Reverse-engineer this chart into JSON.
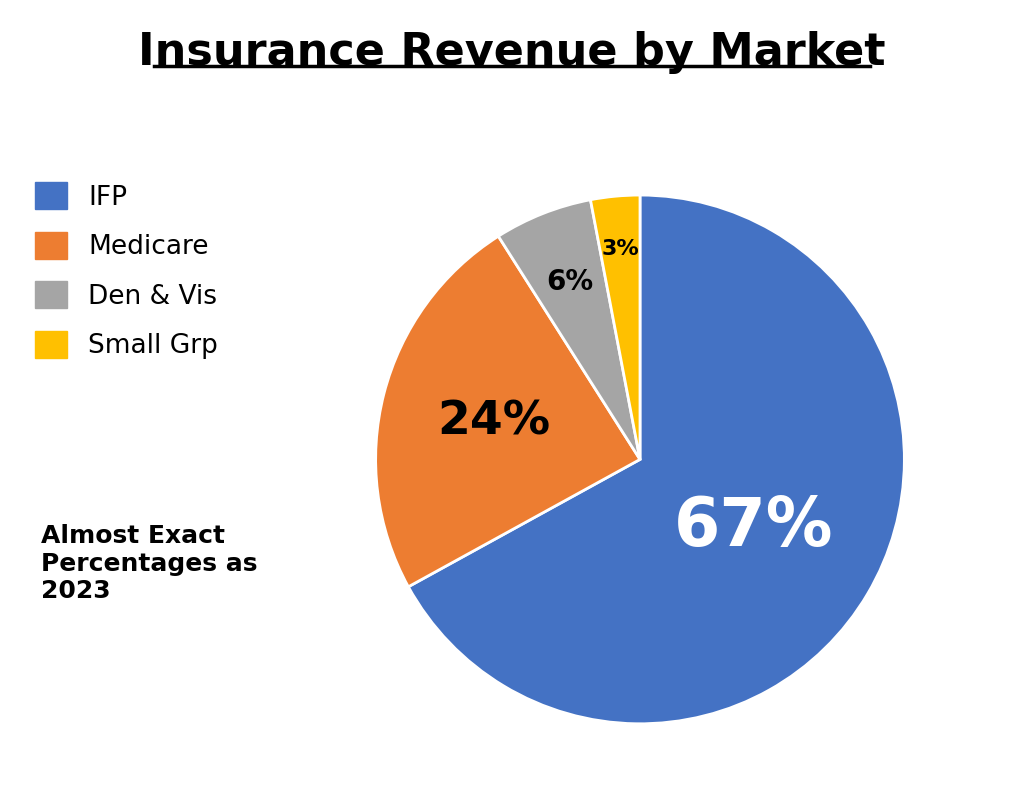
{
  "title": "Insurance Revenue by Market",
  "slices": [
    67,
    24,
    6,
    3
  ],
  "labels": [
    "IFP",
    "Medicare",
    "Den & Vis",
    "Small Grp"
  ],
  "colors": [
    "#4472C4",
    "#ED7D31",
    "#A5A5A5",
    "#FFC000"
  ],
  "pct_labels": [
    "67%",
    "24%",
    "6%",
    "3%"
  ],
  "pct_colors": [
    "white",
    "black",
    "black",
    "black"
  ],
  "pct_fontsizes": [
    48,
    34,
    20,
    16
  ],
  "annotation": "Almost Exact\nPercentages as\n2023",
  "annotation_fontsize": 18,
  "legend_fontsize": 19,
  "title_fontsize": 32,
  "background_color": "#ffffff"
}
